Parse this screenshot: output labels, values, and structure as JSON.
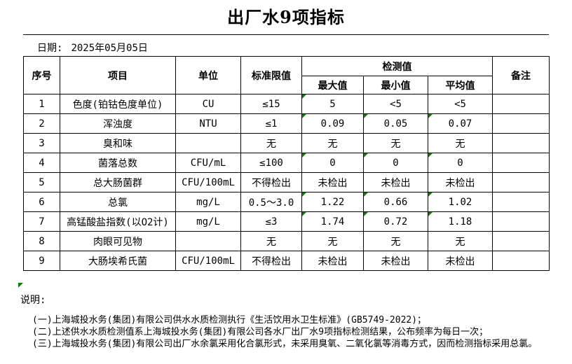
{
  "title": "出厂水9项指标",
  "date": {
    "label": "日期:",
    "value": "2025年05月05日"
  },
  "table": {
    "headers": {
      "seq": "序号",
      "item": "项目",
      "unit": "单位",
      "limit": "标准限值",
      "detection": "检测值",
      "max": "最大值",
      "min": "最小值",
      "avg": "平均值",
      "remark": "备注"
    },
    "rows": [
      {
        "seq": "1",
        "item": "色度(铂钴色度单位)",
        "unit": "CU",
        "limit": "≤15",
        "max": "5",
        "min": "<5",
        "avg": "<5",
        "remark": "",
        "markers": [
          true,
          false,
          false
        ]
      },
      {
        "seq": "2",
        "item": "浑浊度",
        "unit": "NTU",
        "limit": "≤1",
        "max": "0.09",
        "min": "0.05",
        "avg": "0.07",
        "remark": "",
        "markers": [
          true,
          true,
          true
        ]
      },
      {
        "seq": "3",
        "item": "臭和味",
        "unit": "",
        "limit": "无",
        "max": "无",
        "min": "无",
        "avg": "无",
        "remark": "",
        "markers": [
          false,
          false,
          false
        ]
      },
      {
        "seq": "4",
        "item": "菌落总数",
        "unit": "CFU/mL",
        "limit": "≤100",
        "max": "0",
        "min": "0",
        "avg": "0",
        "remark": "",
        "markers": [
          true,
          true,
          true
        ]
      },
      {
        "seq": "5",
        "item": "总大肠菌群",
        "unit": "CFU/100mL",
        "limit": "不得检出",
        "max": "未检出",
        "min": "未检出",
        "avg": "未检出",
        "remark": "",
        "markers": [
          false,
          false,
          false
        ]
      },
      {
        "seq": "6",
        "item": "总氯",
        "unit": "mg/L",
        "limit": "0.5～3.0",
        "max": "1.22",
        "min": "0.66",
        "avg": "1.02",
        "remark": "",
        "markers": [
          true,
          true,
          true
        ]
      },
      {
        "seq": "7",
        "item": "高锰酸盐指数(以O2计)",
        "unit": "mg/L",
        "limit": "≤3",
        "max": "1.74",
        "min": "0.72",
        "avg": "1.18",
        "remark": "",
        "markers": [
          true,
          true,
          true
        ]
      },
      {
        "seq": "8",
        "item": "肉眼可见物",
        "unit": "",
        "limit": "无",
        "max": "无",
        "min": "无",
        "avg": "无",
        "remark": "",
        "markers": [
          false,
          false,
          false
        ]
      },
      {
        "seq": "9",
        "item": "大肠埃希氏菌",
        "unit": "CFU/100mL",
        "limit": "不得检出",
        "max": "未检出",
        "min": "未检出",
        "avg": "未检出",
        "remark": "",
        "markers": [
          false,
          false,
          false
        ]
      }
    ]
  },
  "notes": {
    "label": "说明:",
    "items": [
      "(一)上海城投水务(集团)有限公司供水水质检测执行《生活饮用水卫生标准》(GB5749-2022)；",
      "(二)上述供水水质检测值系上海城投水务(集团)有限公司各水厂出厂水9项指标检测结果，公布频率为每日一次；",
      "(三)上海城投水务(集团)有限公司出厂水余氯采用化合氯形式，未采用臭氧、二氧化氯等消毒方式，因而检测指标采用总氯。"
    ]
  },
  "colors": {
    "marker_green": "#0a800a",
    "border": "#000000",
    "text": "#000000",
    "background": "#ffffff"
  }
}
